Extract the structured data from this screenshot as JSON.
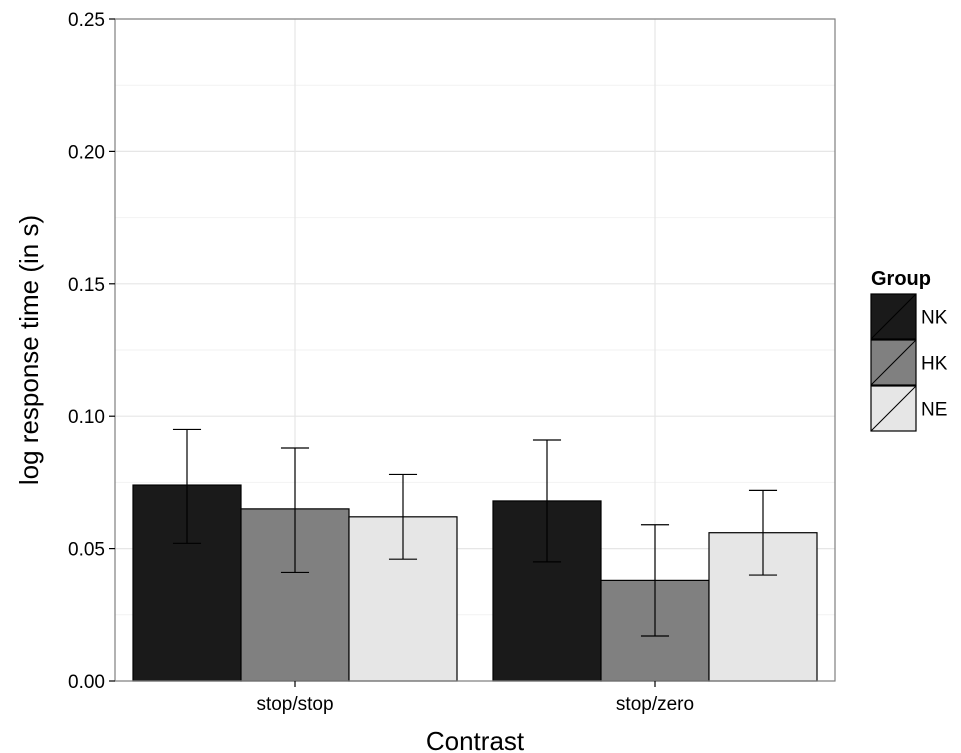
{
  "chart_data": {
    "type": "bar",
    "title": "",
    "xlabel": "Contrast",
    "ylabel": "log response time (in s)",
    "categories": [
      "stop/stop",
      "stop/zero"
    ],
    "ylim": [
      0,
      0.25
    ],
    "yticks": [
      0.0,
      0.05,
      0.1,
      0.15,
      0.2,
      0.25
    ],
    "ytick_labels": [
      "0.00",
      "0.05",
      "0.10",
      "0.15",
      "0.20",
      "0.25"
    ],
    "grid": true,
    "legend": {
      "title": "Group",
      "placement": "right"
    },
    "series": [
      {
        "name": "NK",
        "color": "#1a1a1a",
        "values": [
          0.074,
          0.068
        ],
        "err_low": [
          0.052,
          0.045
        ],
        "err_high": [
          0.095,
          0.091
        ]
      },
      {
        "name": "HK",
        "color": "#808080",
        "values": [
          0.065,
          0.038
        ],
        "err_low": [
          0.041,
          0.017
        ],
        "err_high": [
          0.088,
          0.059
        ]
      },
      {
        "name": "NE",
        "color": "#e6e6e6",
        "values": [
          0.062,
          0.056
        ],
        "err_low": [
          0.046,
          0.04
        ],
        "err_high": [
          0.078,
          0.072
        ]
      }
    ]
  }
}
